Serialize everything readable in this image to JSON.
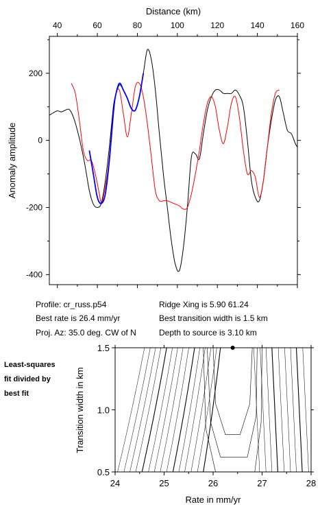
{
  "chart_data": [
    {
      "type": "line",
      "xlabel": "Distance (km)",
      "ylabel": "Anomaly amplitude",
      "xlim": [
        36,
        160
      ],
      "ylim": [
        -430,
        310
      ],
      "xticks": [
        "40",
        "60",
        "80",
        "100",
        "120",
        "140",
        "160"
      ],
      "yticks": [
        "200",
        "0",
        "-200",
        "-400"
      ],
      "x_axis_position": "top",
      "series": [
        {
          "color": "#000000",
          "x": [
            36,
            38,
            40,
            42,
            44,
            46,
            48,
            50,
            52,
            54,
            56,
            58,
            60,
            62,
            64,
            66,
            68,
            69,
            71,
            73,
            75,
            77,
            79,
            81,
            83,
            85,
            87,
            89,
            91,
            93,
            95,
            97,
            99,
            101,
            103,
            105,
            107,
            109,
            111,
            113,
            115,
            117,
            119,
            121,
            123,
            125,
            127,
            129,
            131,
            133,
            135,
            137,
            139,
            141,
            143,
            145,
            147,
            149,
            151,
            153,
            155,
            157,
            159,
            160
          ],
          "y": [
            75,
            82,
            88,
            85,
            90,
            92,
            70,
            30,
            -20,
            -80,
            -150,
            -190,
            -200,
            -187,
            -120,
            -20,
            100,
            130,
            165,
            150,
            125,
            95,
            90,
            130,
            200,
            270,
            240,
            150,
            20,
            -100,
            -200,
            -300,
            -370,
            -388,
            -320,
            -200,
            -50,
            -40,
            -55,
            20,
            90,
            130,
            150,
            150,
            140,
            140,
            140,
            150,
            135,
            100,
            0,
            -120,
            -170,
            -180,
            -120,
            -20,
            60,
            120,
            130,
            80,
            30,
            20,
            -10,
            -20
          ]
        },
        {
          "color": "#ff0000",
          "x": [
            47,
            49,
            51,
            53,
            55,
            57,
            59,
            61,
            62,
            63,
            65,
            67,
            69,
            71,
            73,
            75,
            77,
            79,
            81,
            83,
            85,
            87,
            89,
            91,
            93,
            95,
            97,
            99,
            101,
            103,
            105,
            107,
            109,
            111,
            113,
            115,
            117,
            119,
            121,
            123,
            125,
            127,
            129,
            131,
            133,
            135,
            137,
            139,
            141,
            143,
            145,
            147,
            149,
            151
          ],
          "y": [
            170,
            140,
            60,
            -30,
            -60,
            -60,
            -100,
            -160,
            -188,
            -170,
            -100,
            10,
            130,
            150,
            80,
            10,
            80,
            160,
            170,
            130,
            50,
            -50,
            -150,
            -180,
            -180,
            -180,
            -185,
            -190,
            -195,
            -205,
            -200,
            -160,
            -100,
            -30,
            50,
            110,
            130,
            100,
            30,
            -10,
            40,
            110,
            130,
            70,
            -30,
            -100,
            -90,
            -110,
            -170,
            -120,
            -20,
            80,
            140,
            150
          ]
        },
        {
          "color": "#0000ff",
          "x": [
            56,
            58,
            60,
            62,
            64,
            66,
            68,
            69,
            71,
            73,
            75,
            77,
            79,
            81,
            83
          ],
          "y": [
            -30,
            -100,
            -170,
            -188,
            -160,
            -60,
            80,
            130,
            170,
            150,
            125,
            95,
            90,
            130,
            200
          ]
        }
      ]
    },
    {
      "type": "contour",
      "xlabel": "Rate in mm/yr",
      "ylabel": "Transition width in km",
      "xlim": [
        24,
        28
      ],
      "ylim": [
        0.5,
        1.5
      ],
      "xticks": [
        "24",
        "25",
        "26",
        "27",
        "28"
      ],
      "yticks": [
        "0.5",
        "1.0",
        "1.5"
      ],
      "best_fit_marker": {
        "rate": 26.4,
        "width": 1.5
      }
    }
  ],
  "info": {
    "profile": "Profile: cr_russ.p54",
    "best_rate": "Best rate is 26.4 mm/yr",
    "proj_az": "Proj. Az: 35.0 deg. CW of N",
    "ridge_xing": "Ridge Xing is 5.90 61.24",
    "best_width": "Best transition width is 1.5 km",
    "depth": "Depth to source is    3.10 km"
  },
  "side_note": [
    "Least-squares",
    "fit divided by",
    "best fit"
  ]
}
